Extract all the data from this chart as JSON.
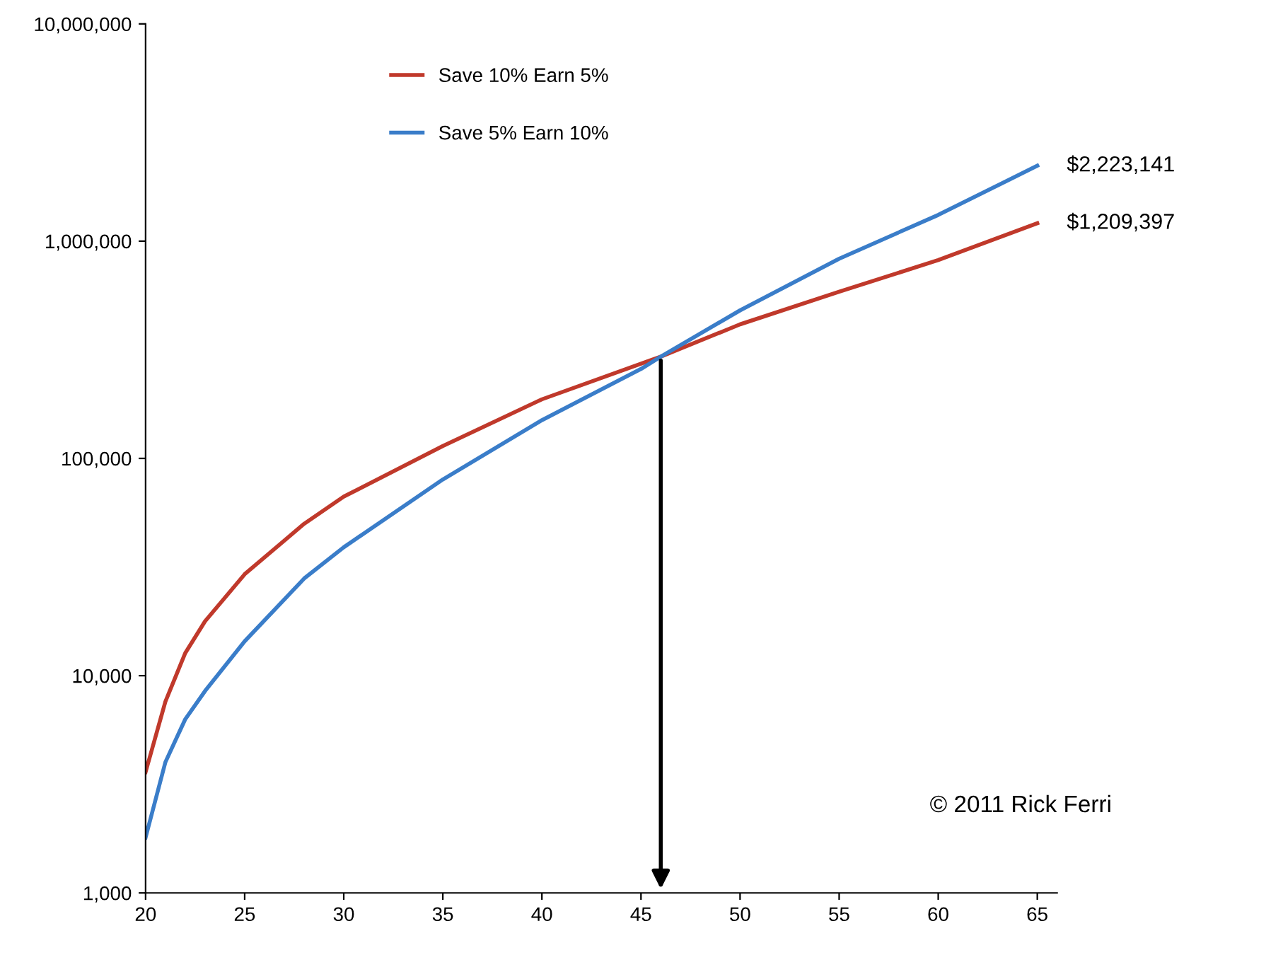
{
  "chart_data": {
    "type": "line",
    "x": [
      20,
      21,
      22,
      23,
      25,
      28,
      30,
      35,
      40,
      45,
      46,
      50,
      55,
      60,
      65
    ],
    "series": [
      {
        "name": "Save 10% Earn 5%",
        "color": "#c0392b",
        "values": [
          3600,
          7600,
          12700,
          17800,
          29300,
          50000,
          66700,
          114000,
          187000,
          273000,
          294000,
          414000,
          585000,
          818000,
          1209397
        ],
        "value_labels": [
          null,
          null,
          null,
          null,
          null,
          null,
          null,
          null,
          null,
          null,
          null,
          null,
          null,
          null,
          "$1,209,397"
        ]
      },
      {
        "name": "Save 5% Earn 10%",
        "color": "#3a7dc9",
        "values": [
          1800,
          4000,
          6300,
          8500,
          14400,
          28000,
          39000,
          80000,
          150000,
          258000,
          294000,
          480000,
          830000,
          1320000,
          2223141
        ],
        "value_labels": [
          null,
          null,
          null,
          null,
          null,
          null,
          null,
          null,
          null,
          null,
          null,
          null,
          null,
          null,
          "$2,223,141"
        ]
      }
    ],
    "log": "y",
    "xlim": [
      20,
      66
    ],
    "xticks": [
      20,
      25,
      30,
      35,
      40,
      45,
      50,
      55,
      60,
      65
    ],
    "ylim": [
      1000,
      10000000
    ],
    "yticks": [
      {
        "value": 1000,
        "label": "1,000"
      },
      {
        "value": 10000,
        "label": "10,000"
      },
      {
        "value": 100000,
        "label": "100,000"
      },
      {
        "value": 1000000,
        "label": "1,000,000"
      },
      {
        "value": 10000000,
        "label": "10,000,000"
      }
    ],
    "grid": false,
    "legend": "top left",
    "marker": "none",
    "line_style": "solid",
    "annotations": [
      "© 2011 Rick Ferri"
    ]
  }
}
